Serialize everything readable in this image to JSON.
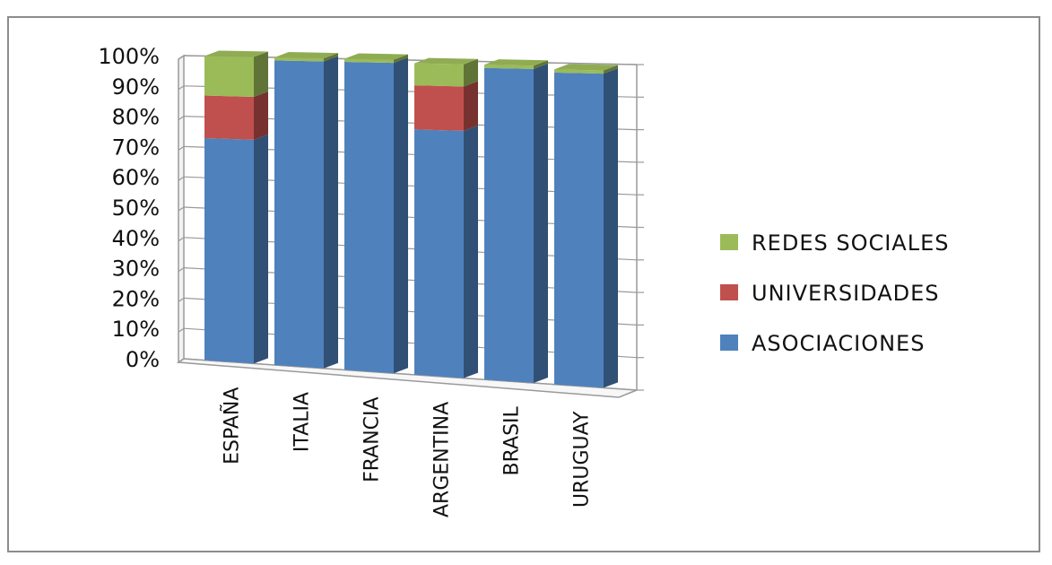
{
  "chart_data": {
    "type": "bar",
    "stacked": true,
    "three_d": true,
    "title": "",
    "xlabel": "",
    "ylabel": "",
    "ylim": [
      0,
      100
    ],
    "y_ticks": [
      "0%",
      "10%",
      "20%",
      "30%",
      "40%",
      "50%",
      "60%",
      "70%",
      "80%",
      "90%",
      "100%"
    ],
    "categories": [
      "ESPAÑA",
      "ITALIA",
      "FRANCIA",
      "ARGENTINA",
      "BRASIL",
      "URUGUAY"
    ],
    "series": [
      {
        "name": "ASOCIACIONES",
        "color": "#4f81bd",
        "values": [
          73,
          99,
          99,
          78,
          98,
          97
        ]
      },
      {
        "name": "UNIVERSIDADES",
        "color": "#c0504d",
        "values": [
          14,
          0,
          0,
          14,
          0,
          0
        ]
      },
      {
        "name": "REDES SOCIALES",
        "color": "#9bbb59",
        "values": [
          13,
          1,
          1,
          7,
          1,
          1
        ]
      }
    ],
    "legend_position": "right",
    "legend_order": [
      "REDES SOCIALES",
      "UNIVERSIDADES",
      "ASOCIACIONES"
    ],
    "grid": true
  }
}
